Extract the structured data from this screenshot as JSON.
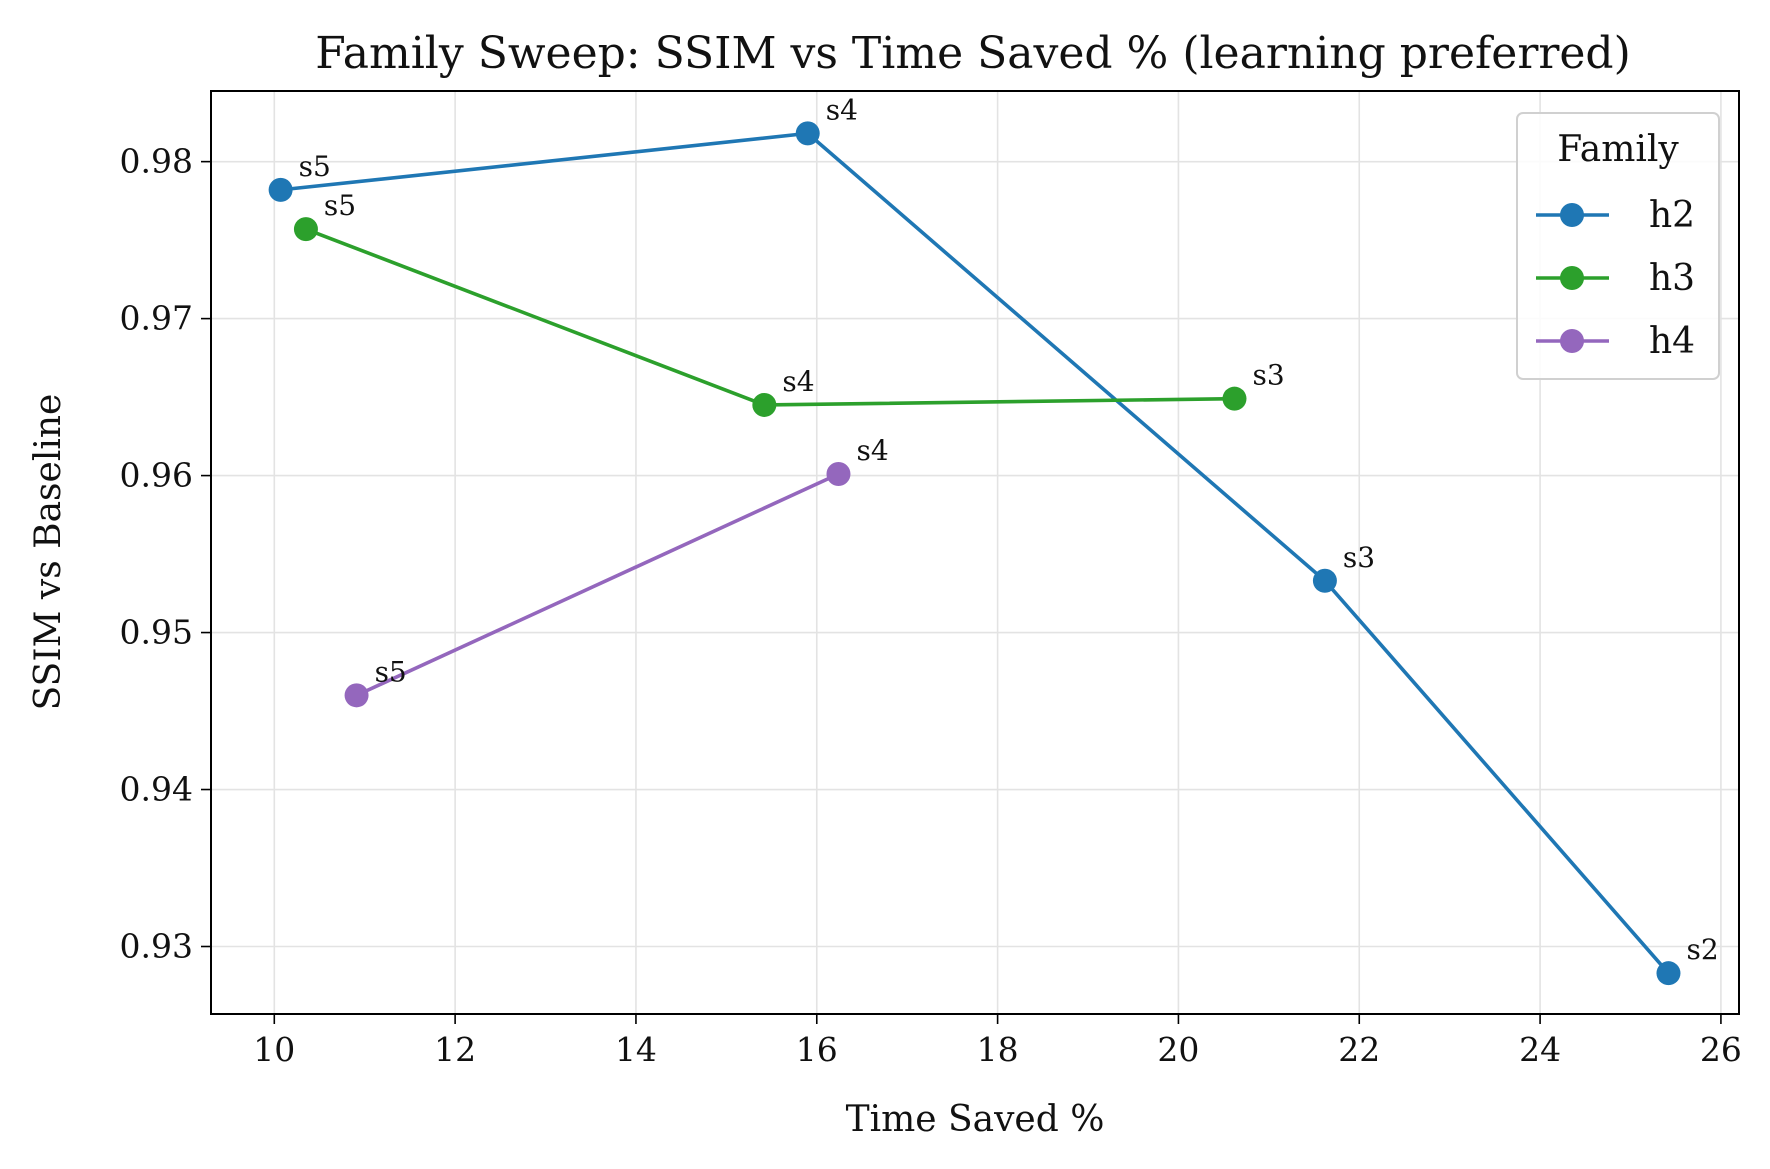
{
  "chart_data": {
    "type": "line",
    "title": "Family Sweep: SSIM vs Time Saved % (learning preferred)",
    "xlabel": "Time Saved %",
    "ylabel": "SSIM vs Baseline",
    "xlim": [
      9.3,
      26.2
    ],
    "ylim": [
      0.9257,
      0.9845
    ],
    "x_ticks": [
      10,
      12,
      14,
      16,
      18,
      20,
      22,
      24,
      26
    ],
    "x_tick_labels": [
      "10",
      "12",
      "14",
      "16",
      "18",
      "20",
      "22",
      "24",
      "26"
    ],
    "y_ticks": [
      0.93,
      0.94,
      0.95,
      0.96,
      0.97,
      0.98
    ],
    "y_tick_labels": [
      "0.93",
      "0.94",
      "0.95",
      "0.96",
      "0.97",
      "0.98"
    ],
    "grid": true,
    "legend": {
      "title": "Family",
      "position": "top-right"
    },
    "series": [
      {
        "name": "h2",
        "color": "#1f77b4",
        "points": [
          {
            "x": 10.07,
            "y": 0.9782,
            "label": "s5"
          },
          {
            "x": 15.9,
            "y": 0.9818,
            "label": "s4"
          },
          {
            "x": 21.62,
            "y": 0.9533,
            "label": "s3"
          },
          {
            "x": 25.42,
            "y": 0.9283,
            "label": "s2"
          }
        ]
      },
      {
        "name": "h3",
        "color": "#2ca02c",
        "points": [
          {
            "x": 10.35,
            "y": 0.9757,
            "label": "s5"
          },
          {
            "x": 15.42,
            "y": 0.9645,
            "label": "s4"
          },
          {
            "x": 20.62,
            "y": 0.9649,
            "label": "s3"
          }
        ]
      },
      {
        "name": "h4",
        "color": "#9467bd",
        "points": [
          {
            "x": 10.91,
            "y": 0.946,
            "label": "s5"
          },
          {
            "x": 16.24,
            "y": 0.9601,
            "label": "s4"
          }
        ]
      }
    ]
  }
}
